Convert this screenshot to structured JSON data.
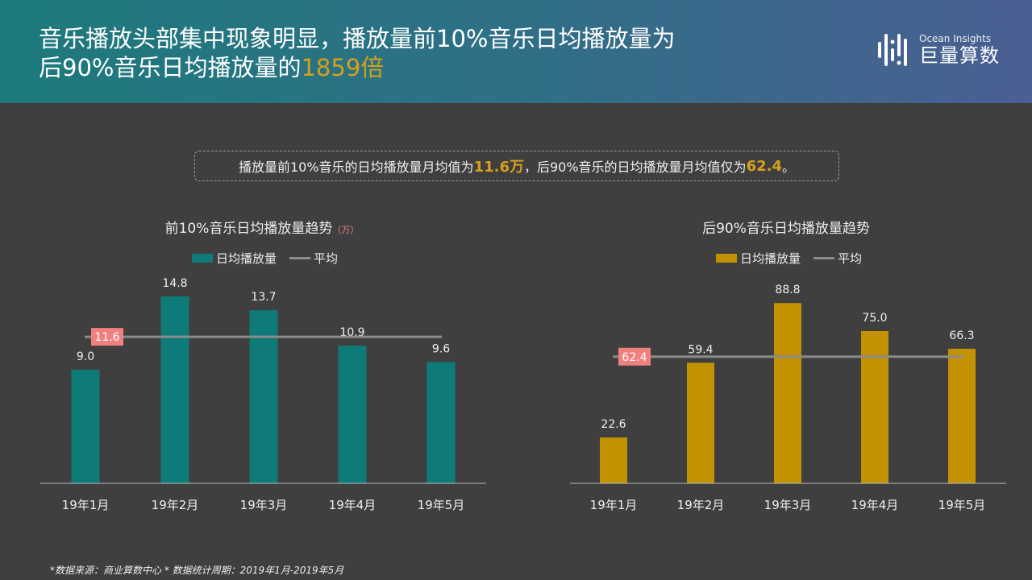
{
  "header": {
    "title_line1": "音乐播放头部集中现象明显，播放量前10%音乐日均播放量为",
    "title_line2_prefix": "后90%音乐日均播放量的",
    "title_highlight": "1859倍"
  },
  "logo": {
    "en": "Ocean Insights",
    "cn": "巨量算数"
  },
  "note": {
    "p1": "播放量前10%音乐的日均播放量月均值为",
    "v1": "11.6万",
    "p2": "，后90%音乐的日均播放量月均值仅为",
    "v2": "62.4",
    "p3": "。"
  },
  "footer": "*数据来源：商业算数中心 * 数据统计周期：2019年1月-2019年5月",
  "chart_data": [
    {
      "type": "bar",
      "title": "前10%音乐日均播放量趋势",
      "unit": "（万）",
      "categories": [
        "19年1月",
        "19年2月",
        "19年3月",
        "19年4月",
        "19年5月"
      ],
      "series": [
        {
          "name": "日均播放量",
          "values": [
            9.0,
            14.8,
            13.7,
            10.9,
            9.6
          ],
          "color": "#0f7b78"
        }
      ],
      "average": {
        "name": "平均",
        "value": 11.6,
        "label": "11.6",
        "color": "#8c8c8c",
        "label_bg": "#f08080"
      },
      "ylim": [
        0,
        16.5
      ],
      "grid": false,
      "legend": "top"
    },
    {
      "type": "bar",
      "title": "后90%音乐日均播放量趋势",
      "categories": [
        "19年1月",
        "19年2月",
        "19年3月",
        "19年4月",
        "19年5月"
      ],
      "series": [
        {
          "name": "日均播放量",
          "values": [
            22.6,
            59.4,
            88.8,
            75.0,
            66.3
          ],
          "color": "#c39200"
        }
      ],
      "average": {
        "name": "平均",
        "value": 62.4,
        "label": "62.4",
        "color": "#8c8c8c",
        "label_bg": "#f08080"
      },
      "ylim": [
        0,
        95
      ],
      "grid": false,
      "legend": "top"
    }
  ]
}
